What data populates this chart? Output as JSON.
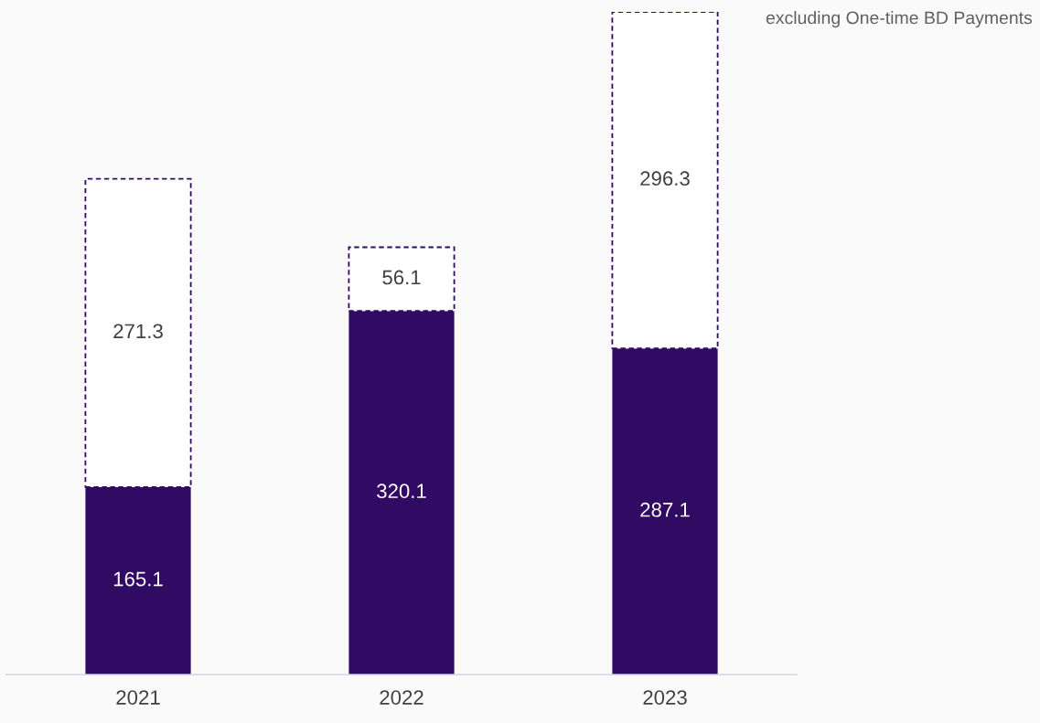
{
  "chart_data": {
    "type": "bar",
    "stacked": true,
    "categories": [
      "2021",
      "2022",
      "2023"
    ],
    "series": [
      {
        "color": "#310a63",
        "values": [
          165.1,
          320.1,
          287.1
        ]
      },
      {
        "color": "#ffffff",
        "values": [
          271.3,
          56.1,
          296.3
        ]
      }
    ],
    "data_labels": true,
    "tick_labels": "x",
    "grid": false,
    "legend": false,
    "annotations": [
      "excluding One-time BD Payments"
    ]
  }
}
